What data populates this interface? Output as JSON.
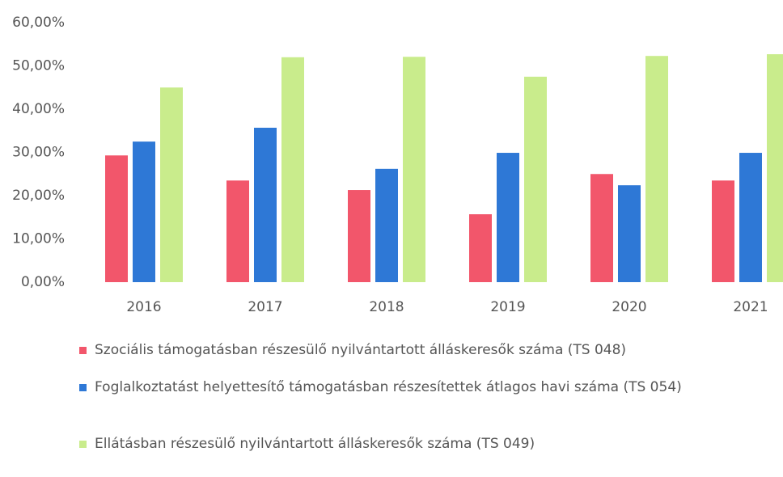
{
  "chart_data": {
    "type": "bar",
    "categories": [
      "2016",
      "2017",
      "2018",
      "2019",
      "2020",
      "2021"
    ],
    "series": [
      {
        "name": "Szociális támogatásban részesülő nyilvántartott álláskeresők száma (TS 048)",
        "color": "#f2566b",
        "values": [
          29.3,
          23.5,
          21.3,
          15.7,
          25.0,
          23.5
        ]
      },
      {
        "name": "Foglalkoztatást helyettesítő támogatásban részesítettek átlagos havi száma (TS 054)",
        "color": "#2e78d6",
        "values": [
          32.5,
          35.7,
          26.2,
          29.9,
          22.4,
          29.9
        ]
      },
      {
        "name": "Ellátásban részesülő nyilvántartott álláskeresők száma (TS 049)",
        "color": "#c9ec8c",
        "values": [
          45.0,
          52.0,
          52.1,
          47.5,
          52.3,
          52.7
        ]
      }
    ],
    "ylim": [
      0,
      60
    ],
    "yticks": [
      {
        "value": 0,
        "label": "0,00%"
      },
      {
        "value": 10,
        "label": "10,00%"
      },
      {
        "value": 20,
        "label": "20,00%"
      },
      {
        "value": 30,
        "label": "30,00%"
      },
      {
        "value": 40,
        "label": "40,00%"
      },
      {
        "value": 50,
        "label": "50,00%"
      },
      {
        "value": 60,
        "label": "60,00%"
      }
    ],
    "grid": false,
    "legend": "bottom"
  }
}
